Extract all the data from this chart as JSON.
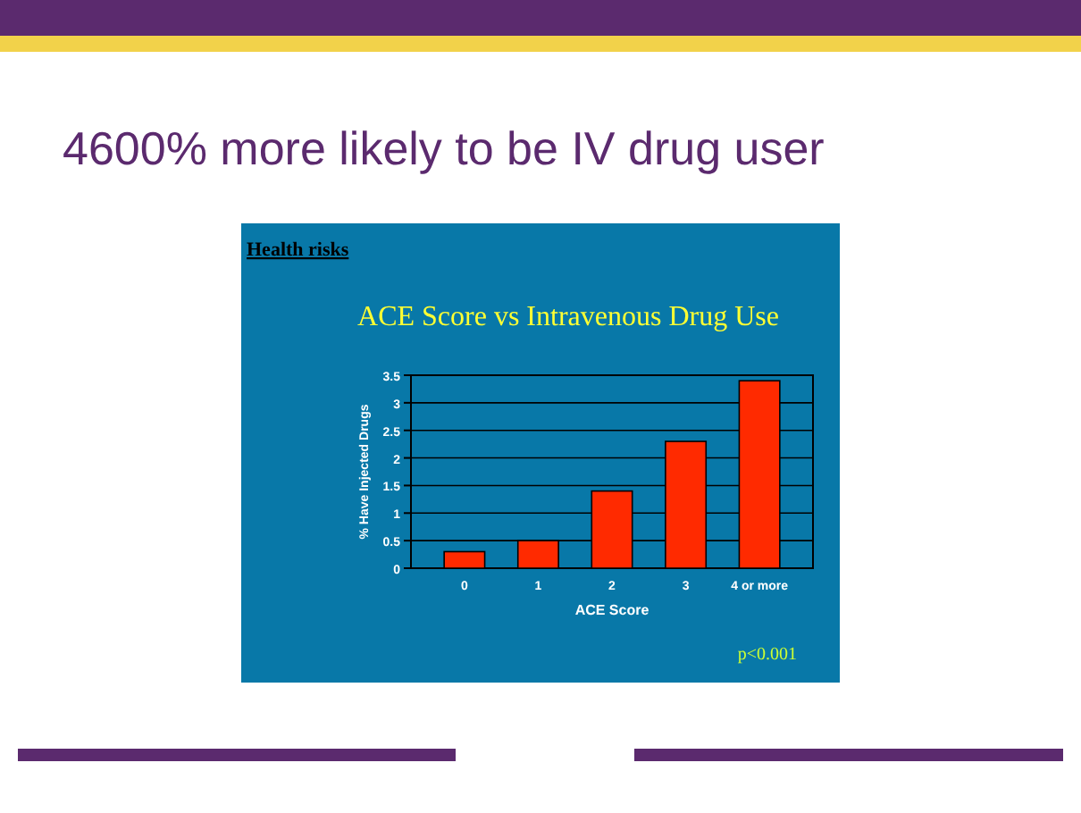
{
  "chart_data": {
    "type": "bar",
    "title": "ACE Score vs Intravenous Drug Use",
    "annotations": [
      "4600% more likely to be IV drug user",
      "Health risks",
      "p<0.001"
    ],
    "categories": [
      "0",
      "1",
      "2",
      "3",
      "4 or more"
    ],
    "values": [
      0.3,
      0.5,
      1.4,
      2.3,
      3.4
    ],
    "color": "#ff2a00",
    "xlabel": "ACE Score",
    "ylabel": "% Have Injected Drugs",
    "ylim": [
      0,
      3.5
    ],
    "yticks": [
      0,
      0.5,
      1,
      1.5,
      2,
      2.5,
      3,
      3.5
    ],
    "grid": "y"
  }
}
